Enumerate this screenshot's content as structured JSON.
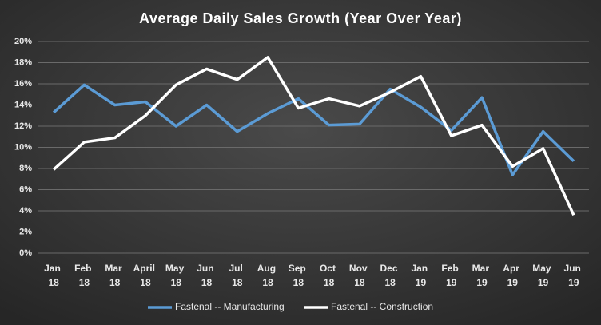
{
  "chart_data": {
    "type": "line",
    "title": "Average Daily Sales Growth (Year Over Year)",
    "categories": [
      "Jan 18",
      "Feb 18",
      "Mar 18",
      "April 18",
      "May 18",
      "Jun 18",
      "Jul 18",
      "Aug 18",
      "Sep 18",
      "Oct 18",
      "Nov 18",
      "Dec 18",
      "Jan 19",
      "Feb 19",
      "Mar 19",
      "Apr 19",
      "May 19",
      "Jun 19"
    ],
    "series": [
      {
        "name": "Fastenal -- Manufacturing",
        "color": "#5b9bd5",
        "values": [
          13.3,
          15.9,
          14.0,
          14.3,
          12.0,
          14.0,
          11.5,
          13.2,
          14.6,
          12.1,
          12.2,
          15.5,
          13.8,
          11.6,
          14.7,
          7.4,
          11.5,
          8.7
        ]
      },
      {
        "name": "Fastenal -- Construction",
        "color": "#ffffff",
        "values": [
          7.9,
          10.5,
          10.9,
          13.0,
          15.9,
          17.4,
          16.4,
          18.5,
          13.7,
          14.6,
          13.9,
          15.2,
          16.7,
          11.1,
          12.1,
          8.2,
          9.9,
          3.6
        ]
      }
    ],
    "ylim": [
      0,
      20
    ],
    "yticks": [
      {
        "value": 0,
        "label": "0%"
      },
      {
        "value": 2,
        "label": "2%"
      },
      {
        "value": 4,
        "label": "4%"
      },
      {
        "value": 6,
        "label": "6%"
      },
      {
        "value": 8,
        "label": "8%"
      },
      {
        "value": 10,
        "label": "10%"
      },
      {
        "value": 12,
        "label": "12%"
      },
      {
        "value": 14,
        "label": "14%"
      },
      {
        "value": 16,
        "label": "16%"
      },
      {
        "value": 18,
        "label": "18%"
      },
      {
        "value": 20,
        "label": "20%"
      }
    ],
    "grid": true,
    "legend": "bottom"
  }
}
